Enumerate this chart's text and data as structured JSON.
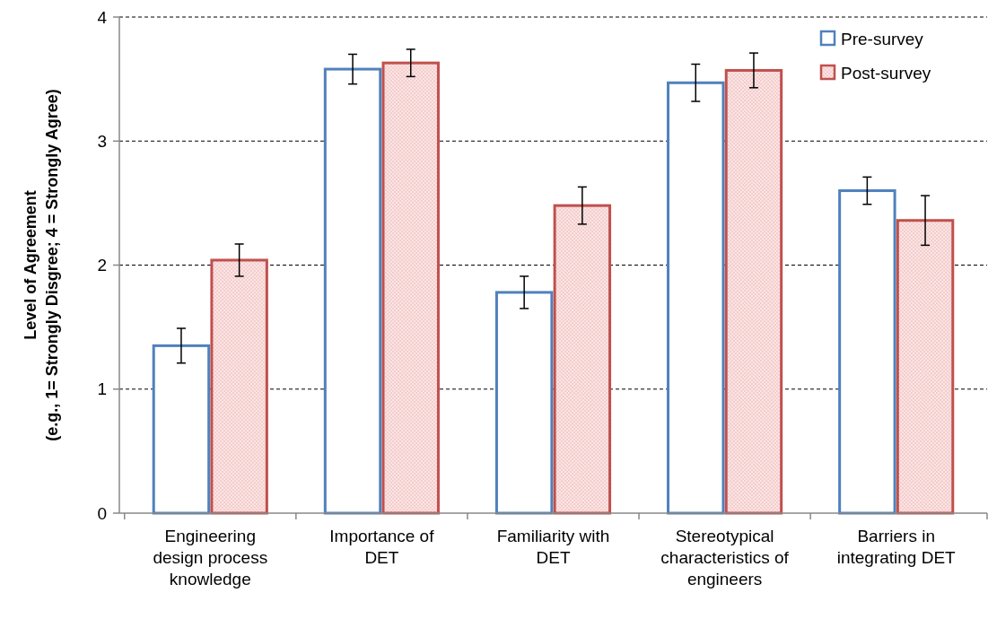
{
  "chart_data": {
    "type": "bar",
    "ylabel": "Level of Agreement\n(e.g., 1= Strongly Disgree;  4 = Strongly Agree)",
    "categories": [
      "Engineering\ndesign process\nknowledge",
      "Importance of\nDET",
      "Familiarity with\nDET",
      "Stereotypical\ncharacteristics of\nengineers",
      "Barriers in\nintegrating DET"
    ],
    "series": [
      {
        "name": "Pre-survey",
        "color": "#4f81bd",
        "values": [
          1.35,
          3.58,
          1.78,
          3.47,
          2.6
        ],
        "errors": [
          0.14,
          0.12,
          0.13,
          0.15,
          0.11
        ]
      },
      {
        "name": "Post-survey",
        "color": "#c0504d",
        "values": [
          2.04,
          3.63,
          2.48,
          3.57,
          2.36
        ],
        "errors": [
          0.13,
          0.11,
          0.15,
          0.14,
          0.2
        ]
      }
    ],
    "ylim": [
      0,
      4
    ],
    "yticks": [
      0,
      1,
      2,
      3,
      4
    ],
    "grid": "y",
    "legend": "top right"
  }
}
